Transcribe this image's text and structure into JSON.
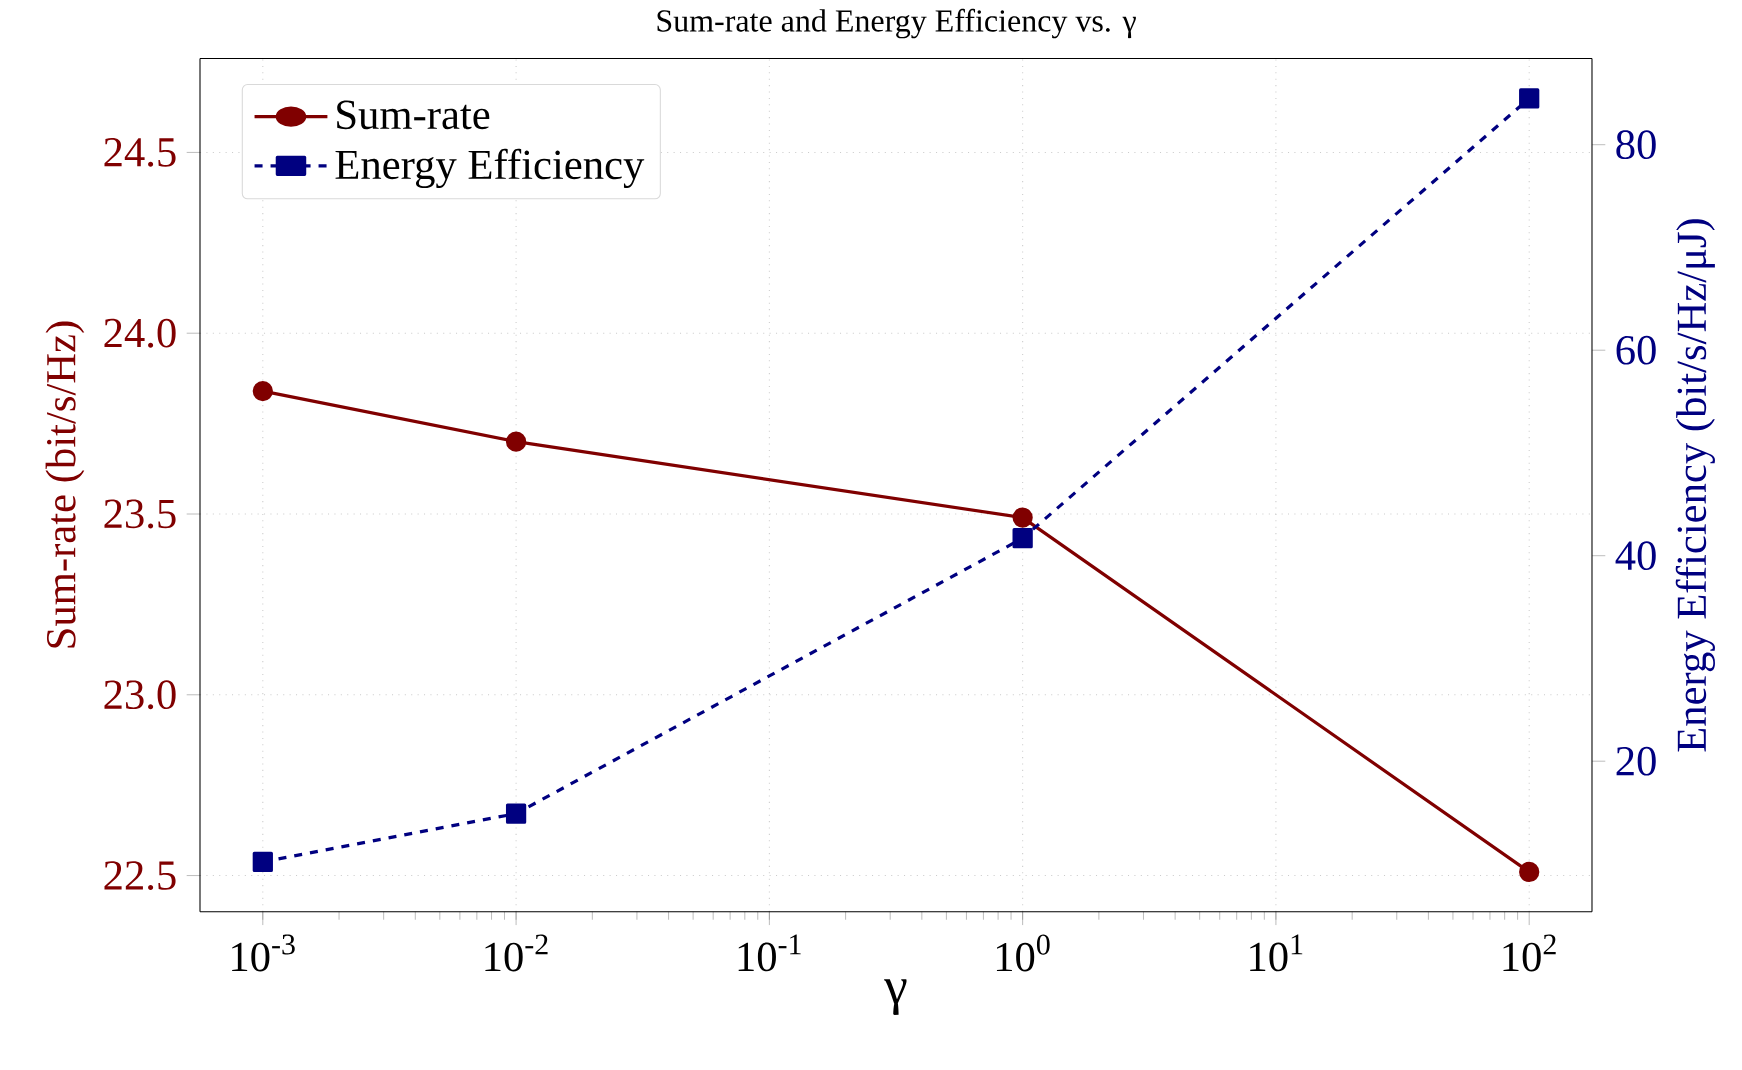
{
  "chart_data": {
    "type": "line",
    "title": "Sum-rate and Energy Efficiency vs. γ",
    "xlabel": "γ",
    "ylabel": "Sum-rate (bit/s/Hz)",
    "y2label": "Energy Efficiency (bit/s/Hz/μJ)",
    "x": [
      0.001,
      0.01,
      1,
      100
    ],
    "series": [
      {
        "name": "Sum-rate",
        "color": "#800000",
        "values": [
          23.84,
          23.7,
          23.49,
          22.51
        ],
        "marker": "circle",
        "line_style": "solid"
      },
      {
        "name": "Energy Efficiency",
        "color": "#000080",
        "values": [
          10.2,
          14.9,
          41.7,
          84.5
        ],
        "marker": "square",
        "line_style": "dashed",
        "axis": "y2"
      }
    ],
    "log": "x",
    "xlim": [
      0.000565,
      177
    ],
    "xticks": [
      {
        "value": 0.001,
        "label": "10$^{-3}$"
      },
      {
        "value": 0.01,
        "label": "10$^{-2}$"
      },
      {
        "value": 0.1,
        "label": "10$^{-1}$"
      },
      {
        "value": 1,
        "label": "10$^{0}$"
      },
      {
        "value": 10,
        "label": "10$^{1}$"
      },
      {
        "value": 100,
        "label": "10$^{2}$"
      }
    ],
    "ylim": [
      22.4,
      24.76
    ],
    "yticks": [
      22.5,
      {
        "value": 23,
        "label": "23.0"
      },
      23.5,
      {
        "value": 24,
        "label": "24.0"
      },
      24.5
    ],
    "y2lim": [
      5.35,
      88.4
    ],
    "y2ticks": [
      20,
      40,
      60,
      80
    ],
    "grid": true,
    "legend": "top left"
  }
}
